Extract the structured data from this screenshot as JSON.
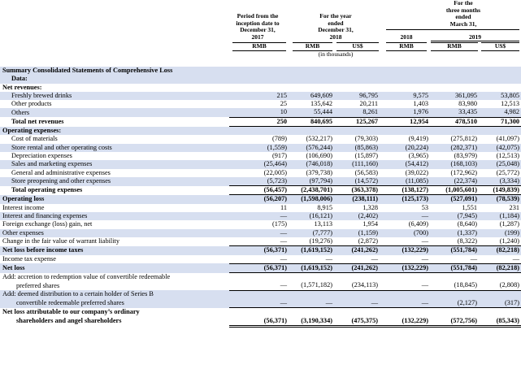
{
  "header": {
    "col1": [
      "Period from the",
      "inception date to",
      "December 31,",
      "2017"
    ],
    "col23": [
      "For the year",
      "ended",
      "December 31,",
      "2018"
    ],
    "col4": "2018",
    "col56_title": [
      "For the",
      "three months",
      "ended",
      "March 31,"
    ],
    "col56_year": "2019",
    "currencies": [
      "RMB",
      "RMB",
      "US$",
      "RMB",
      "RMB",
      "US$"
    ],
    "in_thousands": "(in thousands)"
  },
  "rows": [
    {
      "label": "Summary Consolidated Statements of Comprehensive Loss",
      "style": "bold",
      "indent": 0,
      "shade": true,
      "v": [
        "",
        "",
        "",
        "",
        "",
        ""
      ]
    },
    {
      "label": "Data:",
      "style": "bold",
      "indent": 1,
      "shade": true,
      "v": [
        "",
        "",
        "",
        "",
        "",
        ""
      ]
    },
    {
      "label": "Net revenues:",
      "style": "bold",
      "indent": 0,
      "shade": false,
      "v": [
        "",
        "",
        "",
        "",
        "",
        ""
      ]
    },
    {
      "label": "Freshly brewed drinks",
      "style": "",
      "indent": 1,
      "shade": true,
      "v": [
        "215",
        "649,609",
        "96,795",
        "9,575",
        "361,095",
        "53,805"
      ]
    },
    {
      "label": "Other products",
      "style": "",
      "indent": 1,
      "shade": false,
      "v": [
        "25",
        "135,642",
        "20,211",
        "1,403",
        "83,980",
        "12,513"
      ]
    },
    {
      "label": "Others",
      "style": "",
      "indent": 1,
      "shade": true,
      "ul": true,
      "v": [
        "10",
        "55,444",
        "8,261",
        "1,976",
        "33,435",
        "4,982"
      ]
    },
    {
      "label": "Total net revenues",
      "style": "bold",
      "indent": 1,
      "shade": false,
      "ul": true,
      "v": [
        "250",
        "840,695",
        "125,267",
        "12,954",
        "478,510",
        "71,300"
      ]
    },
    {
      "label": "Operating expenses:",
      "style": "bold",
      "indent": 0,
      "shade": true,
      "v": [
        "",
        "",
        "",
        "",
        "",
        ""
      ]
    },
    {
      "label": "Cost of materials",
      "style": "",
      "indent": 1,
      "shade": false,
      "v": [
        "(789)",
        "(532,217)",
        "(79,303)",
        "(9,419)",
        "(275,812)",
        "(41,097)"
      ]
    },
    {
      "label": "Store rental and other operating costs",
      "style": "",
      "indent": 1,
      "shade": true,
      "v": [
        "(1,559)",
        "(576,244)",
        "(85,863)",
        "(20,224)",
        "(282,371)",
        "(42,075)"
      ]
    },
    {
      "label": "Depreciation expenses",
      "style": "",
      "indent": 1,
      "shade": false,
      "v": [
        "(917)",
        "(106,690)",
        "(15,897)",
        "(3,965)",
        "(83,979)",
        "(12,513)"
      ]
    },
    {
      "label": "Sales and marketing expenses",
      "style": "",
      "indent": 1,
      "shade": true,
      "v": [
        "(25,464)",
        "(746,018)",
        "(111,160)",
        "(54,412)",
        "(168,103)",
        "(25,048)"
      ]
    },
    {
      "label": "General and administrative expenses",
      "style": "",
      "indent": 1,
      "shade": false,
      "v": [
        "(22,005)",
        "(379,738)",
        "(56,583)",
        "(39,022)",
        "(172,962)",
        "(25,772)"
      ]
    },
    {
      "label": "Store preopening and other expenses",
      "style": "",
      "indent": 1,
      "shade": true,
      "ul": true,
      "v": [
        "(5,723)",
        "(97,794)",
        "(14,572)",
        "(11,085)",
        "(22,374)",
        "(3,334)"
      ]
    },
    {
      "label": "Total operating expenses",
      "style": "bold",
      "indent": 1,
      "shade": false,
      "ul": true,
      "v": [
        "(56,457)",
        "(2,438,701)",
        "(363,378)",
        "(138,127)",
        "(1,005,601)",
        "(149,839)"
      ]
    },
    {
      "label": "Operating loss",
      "style": "bold",
      "indent": 0,
      "shade": true,
      "v": [
        "(56,207)",
        "(1,598,006)",
        "(238,111)",
        "(125,173)",
        "(527,091)",
        "(78,539)"
      ]
    },
    {
      "label": "Interest income",
      "style": "",
      "indent": 0,
      "shade": false,
      "v": [
        "11",
        "8,915",
        "1,328",
        "53",
        "1,551",
        "231"
      ]
    },
    {
      "label": "Interest and financing expenses",
      "style": "",
      "indent": 0,
      "shade": true,
      "v": [
        "—",
        "(16,121)",
        "(2,402)",
        "—",
        "(7,945)",
        "(1,184)"
      ]
    },
    {
      "label": "Foreign exchange (loss) gain, net",
      "style": "",
      "indent": 0,
      "shade": false,
      "v": [
        "(175)",
        "13,113",
        "1,954",
        "(6,409)",
        "(8,640)",
        "(1,287)"
      ]
    },
    {
      "label": "Other expenses",
      "style": "",
      "indent": 0,
      "shade": true,
      "v": [
        "—",
        "(7,777)",
        "(1,159)",
        "(700)",
        "(1,337)",
        "(199)"
      ]
    },
    {
      "label": "Change in the fair value of warrant liability",
      "style": "",
      "indent": 0,
      "shade": false,
      "ul": true,
      "v": [
        "—",
        "(19,276)",
        "(2,872)",
        "—",
        "(8,322)",
        "(1,240)"
      ]
    },
    {
      "label": "Net loss before income taxes",
      "style": "bold",
      "indent": 0,
      "shade": true,
      "v": [
        "(56,371)",
        "(1,619,152)",
        "(241,262)",
        "(132,229)",
        "(551,784)",
        "(82,218)"
      ]
    },
    {
      "label": "Income tax expense",
      "style": "",
      "indent": 0,
      "shade": false,
      "ul": true,
      "v": [
        "—",
        "—",
        "—",
        "—",
        "—",
        "—"
      ]
    },
    {
      "label": "Net loss",
      "style": "bold",
      "indent": 0,
      "shade": true,
      "ul": true,
      "v": [
        "(56,371)",
        "(1,619,152)",
        "(241,262)",
        "(132,229)",
        "(551,784)",
        "(82,218)"
      ]
    },
    {
      "label": "Add: accretion to redemption value of convertible redeemable",
      "style": "",
      "indent": 0,
      "shade": false,
      "v": [
        "",
        "",
        "",
        "",
        "",
        ""
      ]
    },
    {
      "label": "preferred shares",
      "style": "",
      "indent": 2,
      "shade": false,
      "ul": true,
      "v": [
        "—",
        "(1,571,182)",
        "(234,113)",
        "—",
        "(18,845)",
        "(2,808)"
      ]
    },
    {
      "label": "Add: deemed distribution to a certain holder of Series B",
      "style": "",
      "indent": 0,
      "shade": true,
      "v": [
        "",
        "",
        "",
        "",
        "",
        ""
      ]
    },
    {
      "label": "convertible redeemable preferred shares",
      "style": "",
      "indent": 2,
      "shade": true,
      "ul": true,
      "v": [
        "—",
        "—",
        "—",
        "—",
        "(2,127)",
        "(317)"
      ]
    },
    {
      "label": "Net loss attributable to our company’s ordinary",
      "style": "bold",
      "indent": 0,
      "shade": false,
      "v": [
        "",
        "",
        "",
        "",
        "",
        ""
      ]
    },
    {
      "label": "shareholders and angel shareholders",
      "style": "bold",
      "indent": 2,
      "shade": false,
      "dul": true,
      "v": [
        "(56,371)",
        "(3,190,334)",
        "(475,375)",
        "(132,229)",
        "(572,756)",
        "(85,343)"
      ]
    }
  ]
}
